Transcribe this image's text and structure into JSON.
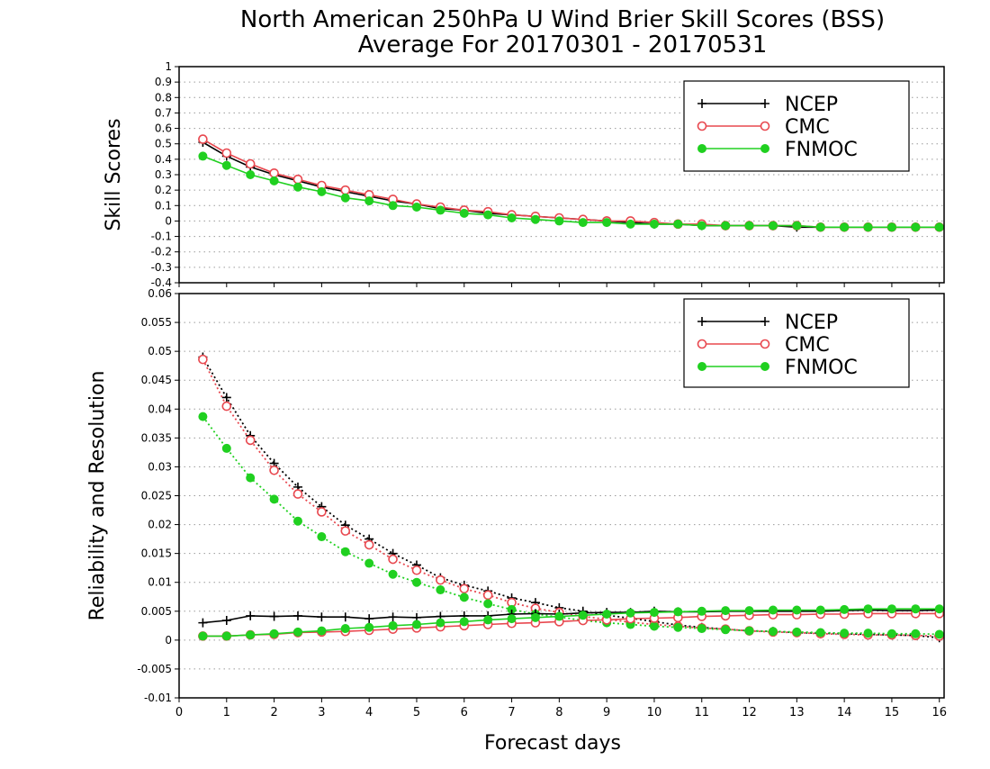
{
  "title": "North American 250hPa U Wind Brier Skill Scores (BSS)",
  "subtitle": "Average For 20170301 - 20170531",
  "colors": {
    "ncep": "#000000",
    "cmc": "#e8484f",
    "fnmoc": "#20d020",
    "grid": "#9a9a9a"
  },
  "legend_names": [
    "NCEP",
    "CMC",
    "FNMOC"
  ],
  "chart_data": [
    {
      "type": "line",
      "panel": "top",
      "ylabel": "Skill Scores",
      "xlim": [
        0,
        16.1
      ],
      "ylim": [
        -0.4,
        1
      ],
      "yticks": [
        "1",
        "0.9",
        "0.8",
        "0.7",
        "0.6",
        "0.5",
        "0.4",
        "0.3",
        "0.2",
        "0.1",
        "0",
        "-0.1",
        "-0.2",
        "-0.3",
        "-0.4"
      ],
      "grid": true,
      "legend_position": "top-right",
      "x": [
        0.5,
        1,
        1.5,
        2,
        2.5,
        3,
        3.5,
        4,
        4.5,
        5,
        5.5,
        6,
        6.5,
        7,
        7.5,
        8,
        8.5,
        9,
        9.5,
        10,
        10.5,
        11,
        11.5,
        12,
        12.5,
        13,
        13.5,
        14,
        14.5,
        15,
        15.5,
        16
      ],
      "series": [
        {
          "name": "NCEP",
          "marker": "plus",
          "values": [
            0.51,
            0.42,
            0.35,
            0.3,
            0.26,
            0.22,
            0.19,
            0.16,
            0.13,
            0.11,
            0.08,
            0.07,
            0.05,
            0.04,
            0.03,
            0.02,
            0.01,
            0.0,
            -0.01,
            -0.02,
            -0.02,
            -0.03,
            -0.03,
            -0.03,
            -0.03,
            -0.04,
            -0.04,
            -0.04,
            -0.04,
            -0.04,
            -0.04,
            -0.04
          ]
        },
        {
          "name": "CMC",
          "marker": "open-circle",
          "values": [
            0.53,
            0.44,
            0.37,
            0.31,
            0.27,
            0.23,
            0.2,
            0.17,
            0.14,
            0.11,
            0.09,
            0.07,
            0.06,
            0.04,
            0.03,
            0.02,
            0.01,
            0.0,
            0.0,
            -0.01,
            -0.02,
            -0.02,
            -0.03,
            -0.03,
            -0.03,
            -0.03,
            -0.04,
            -0.04,
            -0.04,
            -0.04,
            -0.04,
            -0.04
          ]
        },
        {
          "name": "FNMOC",
          "marker": "filled-circle",
          "values": [
            0.42,
            0.36,
            0.3,
            0.26,
            0.22,
            0.19,
            0.15,
            0.13,
            0.1,
            0.09,
            0.07,
            0.05,
            0.04,
            0.02,
            0.01,
            0.0,
            -0.01,
            -0.01,
            -0.02,
            -0.02,
            -0.02,
            -0.03,
            -0.03,
            -0.03,
            -0.03,
            -0.03,
            -0.04,
            -0.04,
            -0.04,
            -0.04,
            -0.04,
            -0.04
          ]
        }
      ]
    },
    {
      "type": "line",
      "panel": "bottom",
      "ylabel": "Reliability and Resolution",
      "xlabel": "Forecast days",
      "xlim": [
        0,
        16.1
      ],
      "xticks": [
        "0",
        "1",
        "2",
        "3",
        "4",
        "5",
        "6",
        "7",
        "8",
        "9",
        "10",
        "11",
        "12",
        "13",
        "14",
        "15",
        "16"
      ],
      "ylim": [
        -0.01,
        0.06
      ],
      "yticks": [
        "0.06",
        "0.055",
        "0.05",
        "0.045",
        "0.04",
        "0.035",
        "0.03",
        "0.025",
        "0.02",
        "0.015",
        "0.01",
        "0.005",
        "0",
        "-0.005",
        "-0.01"
      ],
      "grid": true,
      "legend_position": "top-right",
      "x": [
        0.5,
        1,
        1.5,
        2,
        2.5,
        3,
        3.5,
        4,
        4.5,
        5,
        5.5,
        6,
        6.5,
        7,
        7.5,
        8,
        8.5,
        9,
        9.5,
        10,
        10.5,
        11,
        11.5,
        12,
        12.5,
        13,
        13.5,
        14,
        14.5,
        15,
        15.5,
        16
      ],
      "series": [
        {
          "name": "NCEP",
          "marker": "plus",
          "line": "solid",
          "values": [
            0.003,
            0.0034,
            0.0042,
            0.0041,
            0.0042,
            0.004,
            0.004,
            0.0037,
            0.004,
            0.0039,
            0.0041,
            0.0042,
            0.0042,
            0.0045,
            0.0046,
            0.0045,
            0.0047,
            0.0048,
            0.0048,
            0.005,
            0.0049,
            0.0049,
            0.005,
            0.005,
            0.005,
            0.005,
            0.005,
            0.0051,
            0.0052,
            0.0051,
            0.0051,
            0.0052
          ]
        },
        {
          "name": "NCEP",
          "marker": "plus",
          "line": "dotted",
          "values": [
            0.049,
            0.042,
            0.0354,
            0.0306,
            0.0265,
            0.0231,
            0.0199,
            0.0175,
            0.015,
            0.013,
            0.0108,
            0.0095,
            0.0085,
            0.0073,
            0.0065,
            0.0056,
            0.005,
            0.0043,
            0.0038,
            0.0032,
            0.0026,
            0.0022,
            0.0019,
            0.0016,
            0.0015,
            0.0013,
            0.0012,
            0.0011,
            0.001,
            0.0009,
            0.0008,
            0.0004
          ]
        },
        {
          "name": "CMC",
          "marker": "open-circle",
          "line": "solid",
          "values": [
            0.0007,
            0.0007,
            0.0009,
            0.001,
            0.0013,
            0.0014,
            0.0015,
            0.0017,
            0.0019,
            0.0021,
            0.0023,
            0.0025,
            0.0027,
            0.0029,
            0.003,
            0.0032,
            0.0034,
            0.0035,
            0.0037,
            0.0038,
            0.0039,
            0.0041,
            0.0042,
            0.0043,
            0.0044,
            0.0044,
            0.0045,
            0.0045,
            0.0046,
            0.0046,
            0.0046,
            0.0046
          ]
        },
        {
          "name": "CMC",
          "marker": "open-circle",
          "line": "dotted",
          "values": [
            0.0486,
            0.0405,
            0.0346,
            0.0294,
            0.0253,
            0.0222,
            0.0189,
            0.0165,
            0.014,
            0.0121,
            0.0104,
            0.0089,
            0.0078,
            0.0065,
            0.0055,
            0.0048,
            0.0041,
            0.0036,
            0.0031,
            0.0027,
            0.0024,
            0.0021,
            0.0019,
            0.0016,
            0.0014,
            0.0013,
            0.0011,
            0.001,
            0.0009,
            0.0009,
            0.0008,
            0.0007
          ]
        },
        {
          "name": "FNMOC",
          "marker": "filled-circle",
          "line": "solid",
          "values": [
            0.0007,
            0.0007,
            0.0009,
            0.0011,
            0.0014,
            0.0016,
            0.002,
            0.0022,
            0.0025,
            0.0027,
            0.003,
            0.0032,
            0.0035,
            0.0037,
            0.0039,
            0.0041,
            0.0043,
            0.0045,
            0.0047,
            0.0048,
            0.0049,
            0.005,
            0.0051,
            0.0051,
            0.0052,
            0.0052,
            0.0052,
            0.0053,
            0.0054,
            0.0054,
            0.0054,
            0.0054
          ]
        },
        {
          "name": "FNMOC",
          "marker": "filled-circle",
          "line": "dotted",
          "values": [
            0.0387,
            0.0332,
            0.0281,
            0.0244,
            0.0206,
            0.0179,
            0.0153,
            0.0133,
            0.0114,
            0.01,
            0.0087,
            0.0074,
            0.0063,
            0.0053,
            0.0045,
            0.004,
            0.0034,
            0.003,
            0.0027,
            0.0024,
            0.0022,
            0.002,
            0.0018,
            0.0016,
            0.0015,
            0.0014,
            0.0013,
            0.0012,
            0.0012,
            0.0011,
            0.0011,
            0.001
          ]
        }
      ]
    }
  ]
}
